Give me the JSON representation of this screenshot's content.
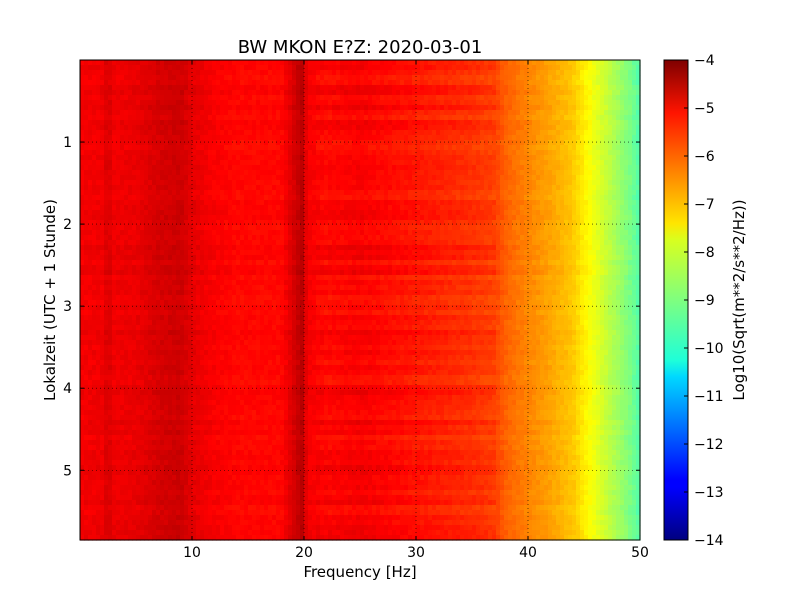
{
  "chart_data": {
    "type": "heatmap",
    "title": "BW MKON E?Z: 2020-03-01",
    "xlabel": "Frequency [Hz]",
    "ylabel": "Lokalzeit (UTC + 1 Stunde)",
    "xlim": [
      0,
      50
    ],
    "ylim": [
      5.85,
      0
    ],
    "x_ticks": [
      10,
      20,
      30,
      40,
      50
    ],
    "x_tick_labels": [
      "10",
      "20",
      "30",
      "40",
      "50"
    ],
    "y_ticks": [
      1,
      2,
      3,
      4,
      5
    ],
    "y_tick_labels": [
      "1",
      "2",
      "3",
      "4",
      "5"
    ],
    "grid": true,
    "colormap": "jet",
    "colorbar": {
      "label": "Log10(Sqrt(m**2/s**2/Hz))",
      "range": [
        -14,
        -4
      ],
      "ticks": [
        -4,
        -5,
        -6,
        -7,
        -8,
        -9,
        -10,
        -11,
        -12,
        -13,
        -14
      ],
      "tick_labels": [
        "−4",
        "−5",
        "−6",
        "−7",
        "−8",
        "−9",
        "−10",
        "−11",
        "−12",
        "−13",
        "−14"
      ]
    },
    "spectrum_profile": {
      "frequency_hz": [
        0,
        2,
        2.5,
        3,
        5,
        7,
        9,
        10,
        12,
        14,
        16,
        18,
        19.8,
        20.3,
        22,
        25,
        28,
        30,
        32,
        35,
        37,
        38,
        40,
        42,
        44,
        45,
        46,
        47,
        48,
        49,
        50
      ],
      "log_amplitude": [
        -5.15,
        -5.1,
        -4.85,
        -5.1,
        -5.05,
        -4.85,
        -4.75,
        -5.0,
        -5.2,
        -5.3,
        -5.3,
        -5.3,
        -4.55,
        -5.15,
        -5.3,
        -5.2,
        -5.35,
        -5.45,
        -5.55,
        -5.7,
        -5.85,
        -6.2,
        -6.55,
        -6.85,
        -7.2,
        -7.6,
        -7.95,
        -8.3,
        -8.65,
        -9.0,
        -9.45
      ]
    }
  }
}
